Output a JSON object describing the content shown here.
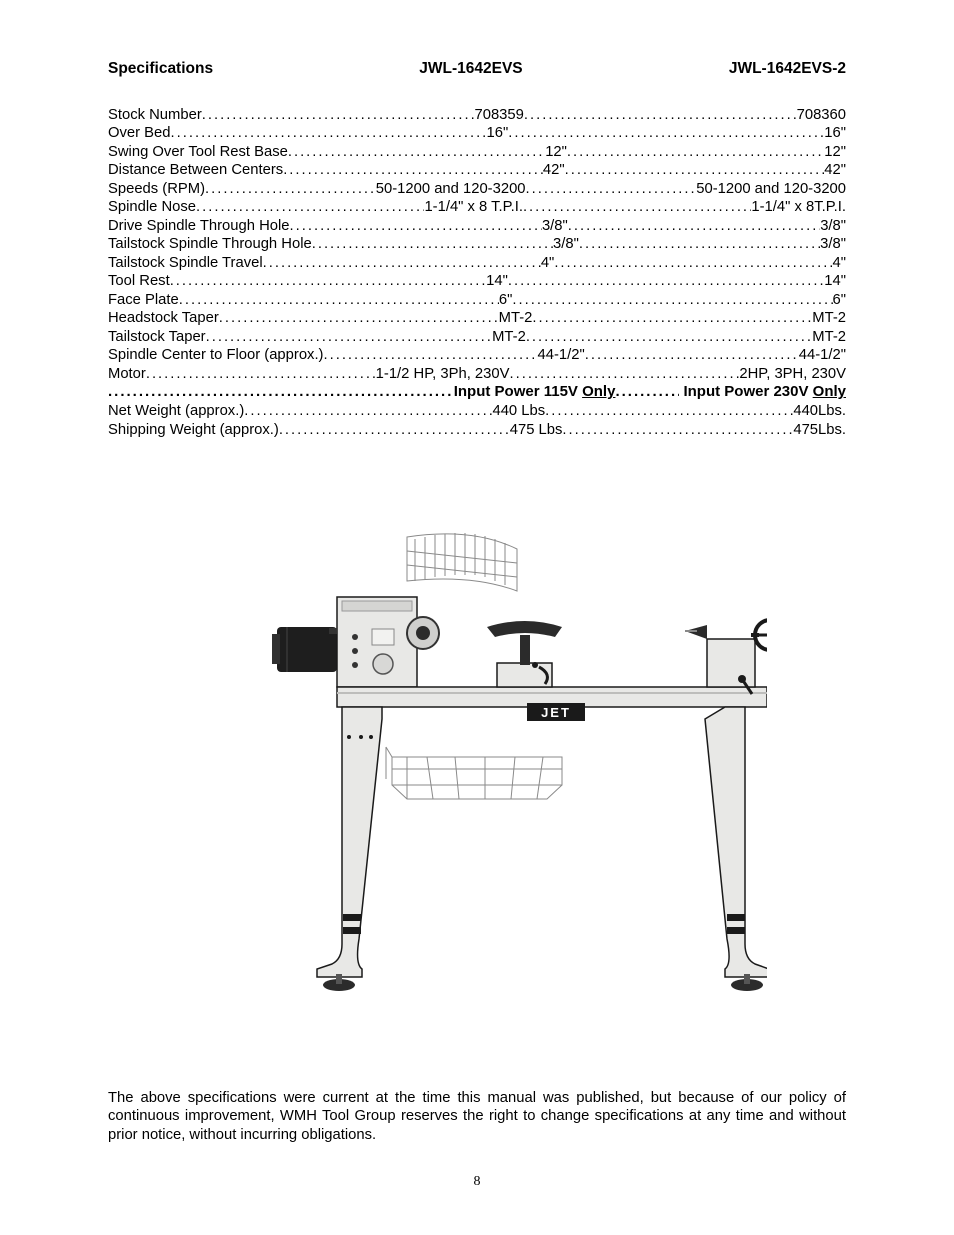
{
  "header": {
    "col1": "Specifications",
    "col2": "JWL-1642EVS",
    "col3": "JWL-1642EVS-2"
  },
  "specs": [
    {
      "label": "Stock Number",
      "v1": "708359",
      "v2": "708360"
    },
    {
      "label": "Over Bed",
      "v1": "16\"",
      "v2": "16\""
    },
    {
      "label": "Swing Over Tool Rest Base",
      "v1": "12\"",
      "v2": "12\""
    },
    {
      "label": "Distance Between Centers",
      "v1": "42\"",
      "v2": "42\""
    },
    {
      "label": "Speeds (RPM)",
      "v1": "50-1200 and 120-3200",
      "v2": "50-1200 and 120-3200"
    },
    {
      "label": "Spindle Nose",
      "v1": "1-1/4\" x 8 T.P.I.",
      "v2": "1-1/4\" x 8T.P.I."
    },
    {
      "label": "Drive Spindle Through Hole",
      "v1": "3/8\"",
      "v2": "3/8\""
    },
    {
      "label": "Tailstock Spindle Through Hole",
      "v1": "3/8\"",
      "v2": "3/8\""
    },
    {
      "label": "Tailstock Spindle Travel",
      "v1": "4\"",
      "v2": "4\""
    },
    {
      "label": "Tool Rest",
      "v1": "14\"",
      "v2": "14\""
    },
    {
      "label": "Face Plate",
      "v1": "6\"",
      "v2": "6\""
    },
    {
      "label": "Headstock Taper",
      "v1": "MT-2",
      "v2": "MT-2"
    },
    {
      "label": "Tailstock Taper",
      "v1": "MT-2",
      "v2": "MT-2"
    },
    {
      "label": "Spindle Center to Floor (approx.)",
      "v1": "44-1/2\"",
      "v2": "44-1/2\""
    },
    {
      "label": "Motor",
      "v1": "1-1/2 HP, 3Ph, 230V",
      "v2": "2HP, 3PH, 230V"
    }
  ],
  "power_row": {
    "v1a": "Input Power 115V ",
    "v1b": "Only",
    "v2a": "Input Power 230V ",
    "v2b": "Only"
  },
  "specs2": [
    {
      "label": "Net Weight (approx.)",
      "v1": "440 Lbs",
      "v2": "440Lbs."
    },
    {
      "label": "Shipping Weight (approx.)",
      "v1": "475 Lbs",
      "v2": "475Lbs."
    }
  ],
  "disclaimer": "The above specifications were current at the time this manual was published, but because of our policy of continuous improvement, WMH Tool Group reserves the right to change specifications at any time and without prior notice, without incurring obligations.",
  "page_number": "8",
  "image": {
    "brand_label": "JET",
    "colors": {
      "body": "#e8e8e6",
      "outline": "#1a1a1a",
      "dark": "#2b2b2b",
      "badge_bg": "#1a1a1a",
      "badge_text": "#ffffff"
    }
  }
}
